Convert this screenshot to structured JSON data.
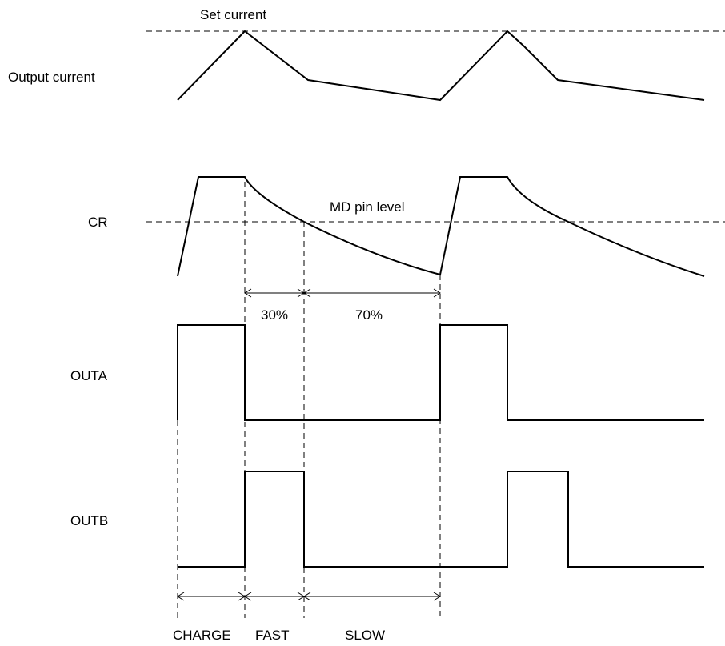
{
  "labels": {
    "set_current": "Set current",
    "output_current": "Output current",
    "cr": "CR",
    "md_pin_level": "MD pin level",
    "pct_fast": "30%",
    "pct_slow": "70%",
    "outa": "OUTA",
    "outb": "OUTB",
    "charge": "CHARGE",
    "fast": "FAST",
    "slow": "SLOW"
  }
}
